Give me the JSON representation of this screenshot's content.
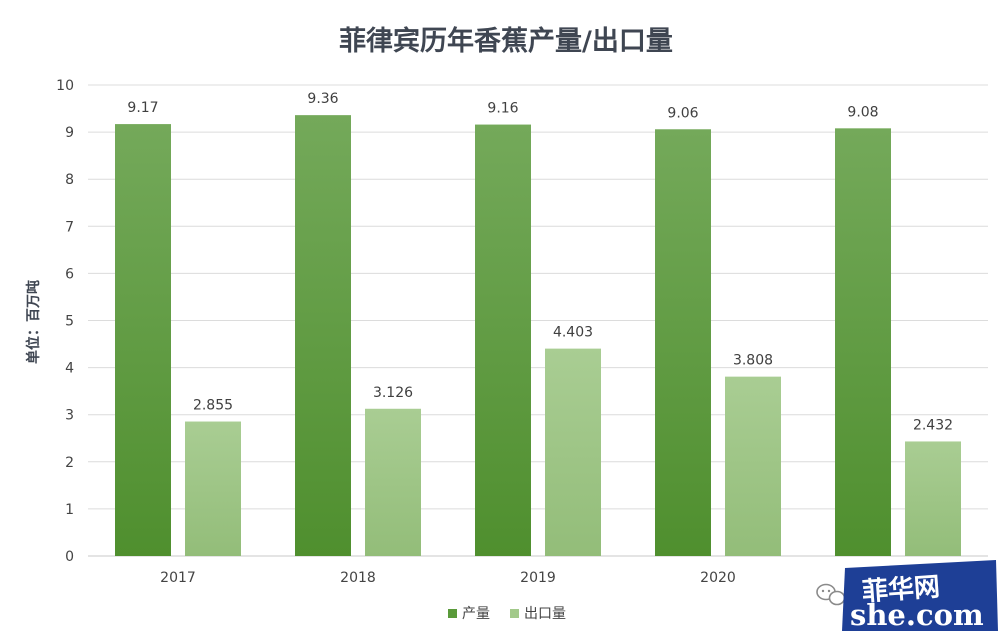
{
  "chart_data": {
    "type": "bar",
    "title": "菲律宾历年香蕉产量/出口量",
    "ylabel": "单位：百万吨",
    "xlabel": "",
    "ylim": [
      0,
      10
    ],
    "yticks": [
      0,
      1,
      2,
      3,
      4,
      5,
      6,
      7,
      8,
      9,
      10
    ],
    "categories": [
      "2017",
      "2018",
      "2019",
      "2020",
      ""
    ],
    "series": [
      {
        "name": "产量",
        "values": [
          9.17,
          9.36,
          9.16,
          9.06,
          9.08
        ],
        "labels": [
          "9.17",
          "9.36",
          "9.16",
          "9.06",
          "9.08"
        ],
        "color": "#5a9a3a"
      },
      {
        "name": "出口量",
        "values": [
          2.855,
          3.126,
          4.403,
          3.808,
          2.432
        ],
        "labels": [
          "2.855",
          "3.126",
          "4.403",
          "3.808",
          "2.432"
        ],
        "color": "#a2c98a"
      }
    ],
    "grid": true,
    "legend_position": "bottom"
  },
  "watermark": {
    "text": "菲华网",
    "site": "she.com",
    "bg_color": "#1e3f96",
    "icon": "wechat-icon"
  }
}
